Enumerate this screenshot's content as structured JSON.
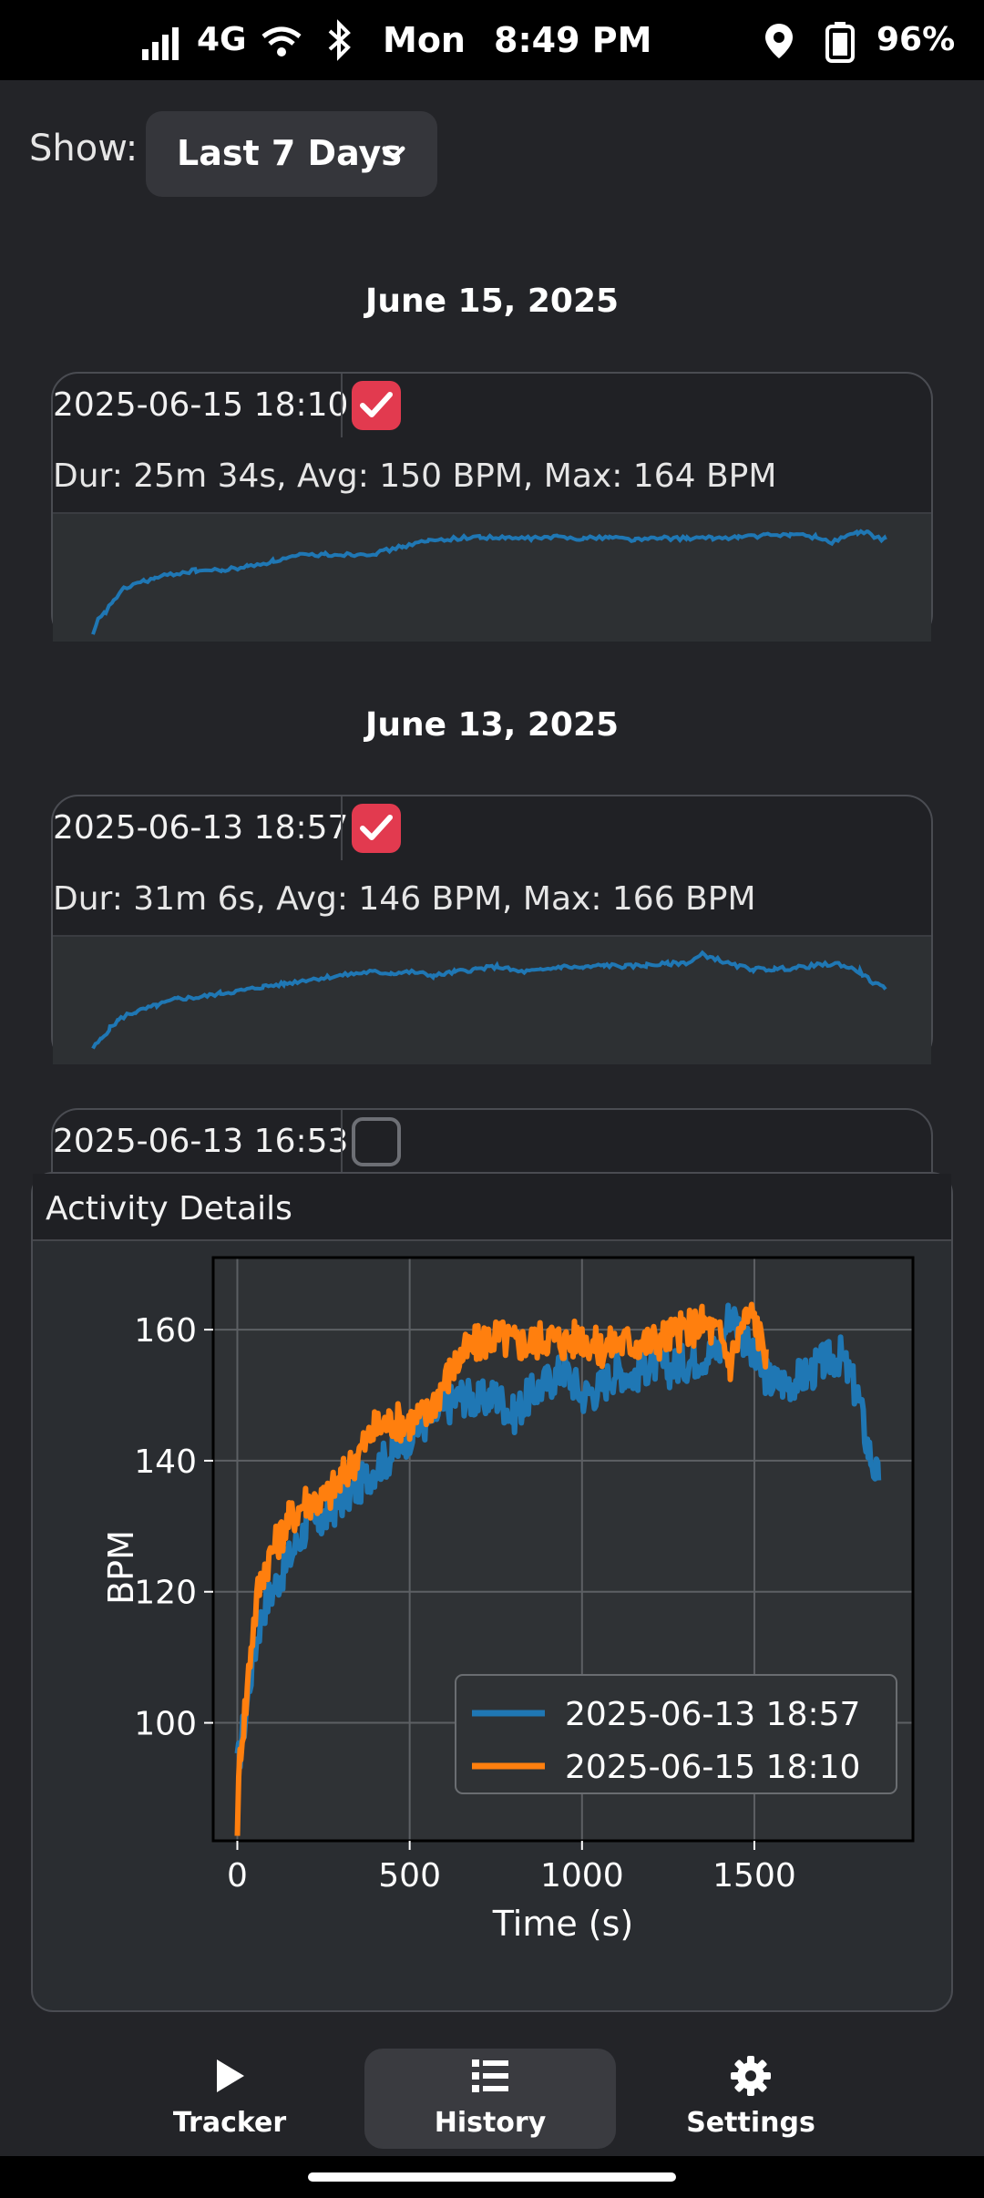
{
  "status_bar": {
    "network": "4G",
    "day": "Mon",
    "time": "8:49 PM",
    "battery": "96%",
    "icons": [
      "signal-icon",
      "wifi-icon",
      "bluetooth-icon",
      "location-icon",
      "battery-icon"
    ]
  },
  "filter": {
    "label": "Show:",
    "selected": "Last 7 Days"
  },
  "groups": [
    {
      "date": "June 15, 2025",
      "activities": [
        {
          "title": "2025-06-15 18:10",
          "checked": true,
          "summary": "Dur: 25m 34s, Avg: 150 BPM, Max: 164 BPM"
        }
      ]
    },
    {
      "date": "June 13, 2025",
      "activities": [
        {
          "title": "2025-06-13 18:57",
          "checked": true,
          "summary": "Dur: 31m 6s, Avg: 146 BPM, Max: 166 BPM"
        },
        {
          "title": "2025-06-13 16:53",
          "checked": false,
          "summary": ""
        }
      ]
    }
  ],
  "details": {
    "title": "Activity Details"
  },
  "chart_data": {
    "type": "line",
    "xlabel": "Time (s)",
    "ylabel": "BPM",
    "xlim": [
      -70,
      1960
    ],
    "ylim": [
      82,
      171
    ],
    "xticks": [
      0,
      500,
      1000,
      1500
    ],
    "yticks": [
      100,
      120,
      140,
      160
    ],
    "grid": true,
    "legend_position": "bottom-right",
    "series": [
      {
        "name": "2025-06-13 18:57",
        "color": "#1f77b4",
        "x": [
          0,
          20,
          40,
          60,
          80,
          100,
          150,
          200,
          250,
          300,
          350,
          400,
          450,
          500,
          550,
          600,
          650,
          700,
          750,
          800,
          850,
          900,
          950,
          1000,
          1050,
          1100,
          1150,
          1200,
          1250,
          1300,
          1350,
          1400,
          1430,
          1460,
          1500,
          1550,
          1600,
          1650,
          1700,
          1750,
          1800,
          1830,
          1860
        ],
        "y": [
          93,
          100,
          108,
          114,
          118,
          120,
          125,
          130,
          131,
          134,
          136,
          139,
          141,
          144,
          146,
          148,
          150,
          149,
          150,
          147,
          150,
          152,
          154,
          150,
          151,
          154,
          153,
          155,
          154,
          155,
          156,
          157,
          163,
          160,
          155,
          152,
          152,
          153,
          155,
          156,
          150,
          142,
          137
        ]
      },
      {
        "name": "2025-06-15 18:10",
        "color": "#ff7f0e",
        "x": [
          0,
          10,
          25,
          40,
          60,
          80,
          100,
          120,
          150,
          200,
          250,
          300,
          350,
          400,
          450,
          500,
          550,
          600,
          650,
          700,
          750,
          800,
          850,
          900,
          950,
          1000,
          1050,
          1100,
          1150,
          1200,
          1250,
          1300,
          1350,
          1400,
          1430,
          1460,
          1480,
          1500,
          1520,
          1534
        ],
        "y": [
          85,
          97,
          103,
          112,
          120,
          124,
          126,
          128,
          131,
          134,
          134,
          137,
          141,
          145,
          146,
          146,
          147,
          152,
          156,
          158,
          159,
          158,
          158,
          159,
          158,
          159,
          157,
          158,
          158,
          158,
          159,
          160,
          161,
          159,
          155,
          160,
          162,
          162,
          158,
          157
        ]
      }
    ]
  },
  "nav": [
    {
      "label": "Tracker",
      "icon": "play-icon",
      "active": false
    },
    {
      "label": "History",
      "icon": "list-icon",
      "active": true
    },
    {
      "label": "Settings",
      "icon": "gear-icon",
      "active": false
    }
  ]
}
